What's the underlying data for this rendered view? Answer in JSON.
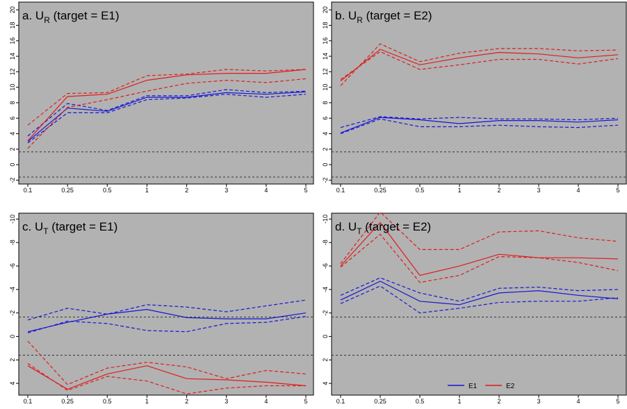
{
  "colors": {
    "panel_bg": "#b2b2b2",
    "E1": "#1515d6",
    "E2": "#e01b1b",
    "reference": "#333333"
  },
  "legend": {
    "items": [
      {
        "label": "E1",
        "color": "#1515d6"
      },
      {
        "label": "E2",
        "color": "#e01b1b"
      }
    ],
    "placement": "bottom-right of panel d"
  },
  "chart_data": [
    {
      "type": "line",
      "title_prefix": "a. U",
      "title_sub": "R",
      "title_suffix": " (target = E1)",
      "categories": [
        "0.1",
        "0.25",
        "0.5",
        "1",
        "2",
        "3",
        "4",
        "5"
      ],
      "ylim": [
        -2.5,
        21
      ],
      "y_ticks": [
        -2,
        0,
        2,
        4,
        6,
        8,
        10,
        12,
        14,
        16,
        18,
        20
      ],
      "y_inverted": false,
      "reference_lines": [
        1.65,
        -1.6
      ],
      "series": [
        {
          "name": "E1",
          "color": "#1515d6",
          "dash": false,
          "values": [
            3.0,
            7.3,
            6.9,
            8.7,
            8.7,
            9.3,
            9.1,
            9.4
          ]
        },
        {
          "name": "E1",
          "color": "#1515d6",
          "dash": true,
          "values": [
            3.7,
            7.9,
            7.0,
            8.9,
            8.9,
            9.7,
            9.3,
            9.5
          ]
        },
        {
          "name": "E1",
          "color": "#1515d6",
          "dash": true,
          "values": [
            2.8,
            6.7,
            6.7,
            8.4,
            8.6,
            9.1,
            8.7,
            9.1
          ]
        },
        {
          "name": "E2",
          "color": "#e01b1b",
          "dash": false,
          "values": [
            3.1,
            8.8,
            9.1,
            10.9,
            11.6,
            11.8,
            11.8,
            12.3
          ]
        },
        {
          "name": "E2",
          "color": "#e01b1b",
          "dash": true,
          "values": [
            5.1,
            9.2,
            9.3,
            11.5,
            11.7,
            12.3,
            12.1,
            12.3
          ]
        },
        {
          "name": "E2",
          "color": "#e01b1b",
          "dash": true,
          "values": [
            2.1,
            7.4,
            8.4,
            9.5,
            10.5,
            10.9,
            10.6,
            11.1
          ]
        }
      ]
    },
    {
      "type": "line",
      "title_prefix": "b. U",
      "title_sub": "R",
      "title_suffix": " (target = E2)",
      "categories": [
        "0.1",
        "0.25",
        "0.5",
        "1",
        "2",
        "3",
        "4",
        "5"
      ],
      "ylim": [
        -2.5,
        21
      ],
      "y_ticks": [
        -2,
        0,
        2,
        4,
        6,
        8,
        10,
        12,
        14,
        16,
        18,
        20
      ],
      "y_inverted": false,
      "reference_lines": [
        1.65,
        -1.6
      ],
      "series": [
        {
          "name": "E1",
          "color": "#1515d6",
          "dash": false,
          "values": [
            4.1,
            6.1,
            5.8,
            5.3,
            5.7,
            5.7,
            5.5,
            5.8
          ]
        },
        {
          "name": "E1",
          "color": "#1515d6",
          "dash": true,
          "values": [
            4.8,
            6.2,
            5.9,
            6.1,
            5.9,
            5.9,
            5.8,
            6.0
          ]
        },
        {
          "name": "E1",
          "color": "#1515d6",
          "dash": true,
          "values": [
            4.0,
            5.9,
            4.9,
            4.9,
            5.1,
            4.9,
            4.8,
            5.1
          ]
        },
        {
          "name": "E2",
          "color": "#e01b1b",
          "dash": false,
          "values": [
            10.8,
            14.9,
            12.9,
            13.8,
            14.5,
            14.3,
            13.8,
            14.2
          ]
        },
        {
          "name": "E2",
          "color": "#e01b1b",
          "dash": true,
          "values": [
            10.2,
            15.6,
            13.3,
            14.4,
            15.0,
            15.0,
            14.7,
            14.8
          ]
        },
        {
          "name": "E2",
          "color": "#e01b1b",
          "dash": true,
          "values": [
            11.0,
            14.6,
            12.3,
            12.9,
            13.6,
            13.6,
            13.0,
            13.7
          ]
        }
      ]
    },
    {
      "type": "line",
      "title_prefix": "c. U",
      "title_sub": "T",
      "title_suffix": " (target = E1)",
      "categories": [
        "0.1",
        "0.25",
        "0.5",
        "1",
        "2",
        "3",
        "4",
        "5"
      ],
      "ylim": [
        -10.5,
        5
      ],
      "y_ticks": [
        -10,
        -8,
        -6,
        -4,
        -2,
        0,
        2,
        4
      ],
      "y_inverted": true,
      "reference_lines": [
        -1.65,
        1.6
      ],
      "series": [
        {
          "name": "E1",
          "color": "#1515d6",
          "dash": false,
          "values": [
            -0.4,
            -1.2,
            -1.9,
            -2.3,
            -1.6,
            -1.5,
            -1.5,
            -2.0
          ]
        },
        {
          "name": "E1",
          "color": "#1515d6",
          "dash": true,
          "values": [
            -1.4,
            -2.4,
            -1.9,
            -2.7,
            -2.5,
            -2.1,
            -2.6,
            -3.1
          ]
        },
        {
          "name": "E1",
          "color": "#1515d6",
          "dash": true,
          "values": [
            -0.3,
            -1.3,
            -1.1,
            -0.5,
            -0.4,
            -1.1,
            -1.2,
            -1.7
          ]
        },
        {
          "name": "E2",
          "color": "#e01b1b",
          "dash": false,
          "values": [
            2.5,
            4.5,
            3.2,
            2.5,
            3.6,
            3.7,
            3.9,
            4.2
          ]
        },
        {
          "name": "E2",
          "color": "#e01b1b",
          "dash": true,
          "values": [
            0.4,
            4.1,
            2.7,
            2.2,
            2.6,
            3.6,
            2.9,
            3.2
          ]
        },
        {
          "name": "E2",
          "color": "#e01b1b",
          "dash": true,
          "values": [
            2.3,
            4.6,
            3.4,
            3.8,
            4.9,
            4.4,
            4.2,
            4.2
          ]
        }
      ]
    },
    {
      "type": "line",
      "title_prefix": "d. U",
      "title_sub": "T",
      "title_suffix": " (target = E2)",
      "categories": [
        "0.1",
        "0.25",
        "0.5",
        "1",
        "2",
        "3",
        "4",
        "5"
      ],
      "ylim": [
        -10.5,
        5
      ],
      "y_ticks": [
        -10,
        -8,
        -6,
        -4,
        -2,
        0,
        2,
        4
      ],
      "y_inverted": true,
      "reference_lines": [
        -1.65,
        1.6
      ],
      "series": [
        {
          "name": "E1",
          "color": "#1515d6",
          "dash": false,
          "values": [
            -3.1,
            -4.7,
            -3.0,
            -2.7,
            -3.7,
            -3.9,
            -3.5,
            -3.2
          ]
        },
        {
          "name": "E1",
          "color": "#1515d6",
          "dash": true,
          "values": [
            -3.5,
            -5.0,
            -3.7,
            -3.0,
            -4.1,
            -4.2,
            -3.9,
            -4.0
          ]
        },
        {
          "name": "E1",
          "color": "#1515d6",
          "dash": true,
          "values": [
            -2.8,
            -4.3,
            -2.0,
            -2.4,
            -2.9,
            -3.0,
            -3.0,
            -3.3
          ]
        },
        {
          "name": "E2",
          "color": "#e01b1b",
          "dash": false,
          "values": [
            -6.0,
            -9.7,
            -5.2,
            -6.0,
            -7.0,
            -6.7,
            -6.7,
            -6.6
          ]
        },
        {
          "name": "E2",
          "color": "#e01b1b",
          "dash": true,
          "values": [
            -6.2,
            -10.6,
            -7.4,
            -7.4,
            -8.9,
            -9.0,
            -8.4,
            -8.1
          ]
        },
        {
          "name": "E2",
          "color": "#e01b1b",
          "dash": true,
          "values": [
            -5.9,
            -8.7,
            -4.6,
            -5.2,
            -6.8,
            -6.7,
            -6.3,
            -5.6
          ]
        }
      ]
    }
  ]
}
